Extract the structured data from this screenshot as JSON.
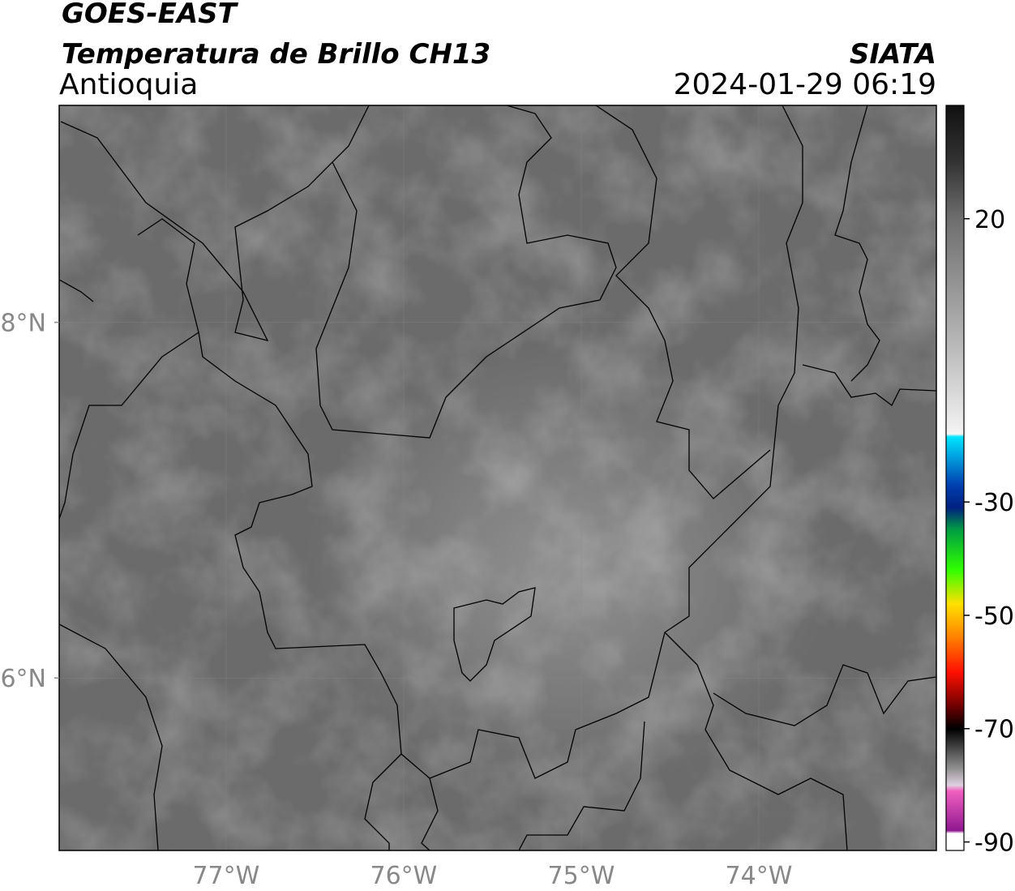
{
  "header": {
    "satellite": "GOES-EAST",
    "product": "Temperatura de Brillo CH13",
    "region": "Antioquia",
    "source": "SIATA",
    "datetime": "2024-01-29 06:19"
  },
  "map": {
    "lonlim": [
      -77.94,
      -73.0
    ],
    "latlim": [
      5.03,
      9.22
    ],
    "lon_ticks": [
      {
        "value": -77,
        "label": "77°W"
      },
      {
        "value": -76,
        "label": "76°W"
      },
      {
        "value": -75,
        "label": "75°W"
      },
      {
        "value": -74,
        "label": "74°W"
      }
    ],
    "lat_ticks": [
      {
        "value": 8,
        "label": "8°N"
      },
      {
        "value": 6,
        "label": "6°N"
      }
    ],
    "grid": true
  },
  "colorbar": {
    "lim": [
      -91.5,
      40
    ],
    "ticks": [
      20,
      -30,
      -50,
      -70,
      -90
    ],
    "stops": [
      [
        40,
        "#111111"
      ],
      [
        30,
        "#333333"
      ],
      [
        20,
        "#6e6e6e"
      ],
      [
        0,
        "#b0b0b0"
      ],
      [
        -18,
        "#f4f4f4"
      ],
      [
        -18.5,
        "#00e5ff"
      ],
      [
        -27,
        "#0040b0"
      ],
      [
        -31,
        "#002080"
      ],
      [
        -35,
        "#00a040"
      ],
      [
        -42,
        "#30ff00"
      ],
      [
        -48,
        "#ffe000"
      ],
      [
        -53,
        "#ff9000"
      ],
      [
        -60,
        "#ff1000"
      ],
      [
        -66,
        "#700000"
      ],
      [
        -70,
        "#000000"
      ],
      [
        -77,
        "#909090"
      ],
      [
        -80,
        "#e0d0e0"
      ],
      [
        -81,
        "#f060c0"
      ],
      [
        -88,
        "#901890"
      ],
      [
        -88.5,
        "#ffffff"
      ],
      [
        -91.5,
        "#ffffff"
      ]
    ]
  }
}
